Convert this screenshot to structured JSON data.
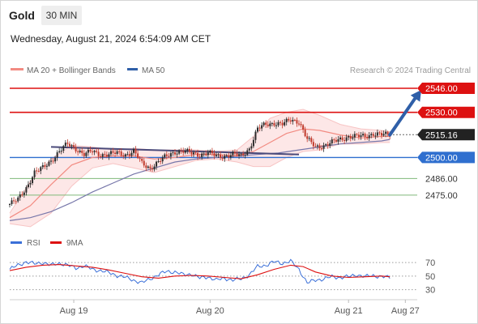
{
  "header": {
    "instrument": "Gold",
    "timeframe": "30 MIN",
    "timestamp": "Wednesday, August 21, 2024 6:54:09 AM CET"
  },
  "legend": {
    "ma20_label": "MA 20 + Bollinger Bands",
    "ma50_label": "MA 50",
    "credit": "Research © 2024 Trading Central",
    "rsi_label": "RSI",
    "ma9_label": "9MA"
  },
  "colors": {
    "resistance": "#dd1111",
    "support": "#2f6fcf",
    "support_minor": "#7fb87a",
    "price_box": "#222222",
    "arrow": "#2f5fa8",
    "candle_up": "#2b2b2b",
    "candle_down": "#c0392b",
    "ma20": "#f28b82",
    "ma50": "#7777aa",
    "bands_fill": "#fde3e3",
    "trendline": "#4a4a7a",
    "rsi": "#3a6fd8",
    "rsi_ma": "#dd1111"
  },
  "chart_data": [
    {
      "type": "candlestick",
      "title": "Gold",
      "timeframe": "30 MIN",
      "x_ticks": [
        "Aug 19",
        "Aug 20",
        "Aug 21",
        "Aug 27"
      ],
      "ylim": [
        2455,
        2553
      ],
      "last_price": 2515.16,
      "levels": [
        {
          "label": "2546.00",
          "value": 2546.0,
          "kind": "resistance"
        },
        {
          "label": "2530.00",
          "value": 2530.0,
          "kind": "resistance"
        },
        {
          "label": "2515.16",
          "value": 2515.16,
          "kind": "price"
        },
        {
          "label": "2500.00",
          "value": 2500.0,
          "kind": "support"
        },
        {
          "label": "2486.00",
          "value": 2486.0,
          "kind": "support-minor"
        },
        {
          "label": "2475.00",
          "value": 2475.0,
          "kind": "support-minor"
        }
      ],
      "close_path": [
        [
          0,
          2469
        ],
        [
          4,
          2472
        ],
        [
          8,
          2480
        ],
        [
          12,
          2490
        ],
        [
          16,
          2493
        ],
        [
          20,
          2498
        ],
        [
          24,
          2504
        ],
        [
          28,
          2509
        ],
        [
          32,
          2506
        ],
        [
          36,
          2502
        ],
        [
          40,
          2504
        ],
        [
          44,
          2502
        ],
        [
          48,
          2502
        ],
        [
          52,
          2503
        ],
        [
          56,
          2502
        ],
        [
          60,
          2504
        ],
        [
          64,
          2496
        ],
        [
          68,
          2493
        ],
        [
          72,
          2497
        ],
        [
          76,
          2501
        ],
        [
          80,
          2504
        ],
        [
          84,
          2504
        ],
        [
          88,
          2503
        ],
        [
          92,
          2502
        ],
        [
          96,
          2503
        ],
        [
          100,
          2501
        ],
        [
          104,
          2501
        ],
        [
          108,
          2502
        ],
        [
          112,
          2501
        ],
        [
          116,
          2506
        ],
        [
          120,
          2519
        ],
        [
          124,
          2522
        ],
        [
          128,
          2523
        ],
        [
          132,
          2522
        ],
        [
          136,
          2525
        ],
        [
          140,
          2524
        ],
        [
          144,
          2512
        ],
        [
          148,
          2507
        ],
        [
          152,
          2508
        ],
        [
          156,
          2510
        ],
        [
          160,
          2512
        ],
        [
          164,
          2514
        ],
        [
          168,
          2514
        ],
        [
          172,
          2514
        ],
        [
          176,
          2516
        ],
        [
          180,
          2515
        ],
        [
          184,
          2515.16
        ]
      ],
      "ma20": [
        [
          0,
          2460
        ],
        [
          10,
          2468
        ],
        [
          20,
          2482
        ],
        [
          30,
          2495
        ],
        [
          40,
          2500
        ],
        [
          50,
          2501
        ],
        [
          60,
          2501
        ],
        [
          70,
          2499
        ],
        [
          80,
          2500
        ],
        [
          90,
          2502
        ],
        [
          100,
          2502
        ],
        [
          110,
          2501
        ],
        [
          118,
          2504
        ],
        [
          126,
          2510
        ],
        [
          134,
          2516
        ],
        [
          142,
          2519
        ],
        [
          150,
          2518
        ],
        [
          160,
          2515
        ],
        [
          170,
          2513
        ],
        [
          180,
          2514
        ],
        [
          184,
          2514
        ]
      ],
      "bb_upper": [
        [
          0,
          2463
        ],
        [
          10,
          2484
        ],
        [
          20,
          2499
        ],
        [
          30,
          2508
        ],
        [
          40,
          2507
        ],
        [
          50,
          2505
        ],
        [
          60,
          2506
        ],
        [
          70,
          2505
        ],
        [
          80,
          2505
        ],
        [
          90,
          2505
        ],
        [
          100,
          2504
        ],
        [
          110,
          2505
        ],
        [
          118,
          2514
        ],
        [
          126,
          2526
        ],
        [
          134,
          2530
        ],
        [
          142,
          2532
        ],
        [
          150,
          2528
        ],
        [
          160,
          2522
        ],
        [
          170,
          2519
        ],
        [
          180,
          2518
        ],
        [
          184,
          2517
        ]
      ],
      "bb_lower": [
        [
          0,
          2456
        ],
        [
          10,
          2454
        ],
        [
          20,
          2463
        ],
        [
          30,
          2481
        ],
        [
          40,
          2493
        ],
        [
          50,
          2496
        ],
        [
          60,
          2493
        ],
        [
          70,
          2490
        ],
        [
          80,
          2494
        ],
        [
          90,
          2498
        ],
        [
          100,
          2499
        ],
        [
          110,
          2497
        ],
        [
          118,
          2494
        ],
        [
          126,
          2494
        ],
        [
          134,
          2500
        ],
        [
          142,
          2504
        ],
        [
          150,
          2505
        ],
        [
          160,
          2509
        ],
        [
          170,
          2509
        ],
        [
          180,
          2510
        ],
        [
          184,
          2510
        ]
      ],
      "ma50": [
        [
          0,
          2458
        ],
        [
          10,
          2460
        ],
        [
          20,
          2464
        ],
        [
          30,
          2470
        ],
        [
          40,
          2477
        ],
        [
          50,
          2483
        ],
        [
          60,
          2489
        ],
        [
          70,
          2493
        ],
        [
          80,
          2497
        ],
        [
          90,
          2499
        ],
        [
          100,
          2500
        ],
        [
          110,
          2501
        ],
        [
          120,
          2502
        ],
        [
          130,
          2503
        ],
        [
          140,
          2505
        ],
        [
          150,
          2507
        ],
        [
          160,
          2509
        ],
        [
          170,
          2510
        ],
        [
          180,
          2511
        ],
        [
          184,
          2512
        ]
      ],
      "trendline": [
        [
          20,
          2507
        ],
        [
          140,
          2502
        ]
      ],
      "forecast_arrow": [
        [
          184,
          2515
        ],
        [
          200,
          2546
        ]
      ]
    },
    {
      "type": "line",
      "title": "RSI",
      "series": [
        {
          "name": "RSI"
        },
        {
          "name": "9MA"
        }
      ],
      "yticks": [
        70,
        50,
        30
      ],
      "ylim": [
        20,
        82
      ],
      "rsi": [
        [
          0,
          60
        ],
        [
          4,
          66
        ],
        [
          8,
          71
        ],
        [
          12,
          68
        ],
        [
          16,
          70
        ],
        [
          20,
          66
        ],
        [
          24,
          69
        ],
        [
          28,
          66
        ],
        [
          32,
          62
        ],
        [
          36,
          65
        ],
        [
          40,
          60
        ],
        [
          44,
          58
        ],
        [
          48,
          55
        ],
        [
          52,
          51
        ],
        [
          56,
          48
        ],
        [
          60,
          44
        ],
        [
          64,
          40
        ],
        [
          68,
          46
        ],
        [
          72,
          52
        ],
        [
          76,
          57
        ],
        [
          80,
          56
        ],
        [
          84,
          52
        ],
        [
          88,
          53
        ],
        [
          92,
          47
        ],
        [
          96,
          49
        ],
        [
          100,
          44
        ],
        [
          104,
          47
        ],
        [
          108,
          44
        ],
        [
          112,
          46
        ],
        [
          116,
          52
        ],
        [
          120,
          64
        ],
        [
          124,
          66
        ],
        [
          128,
          71
        ],
        [
          132,
          69
        ],
        [
          136,
          72
        ],
        [
          140,
          60
        ],
        [
          144,
          40
        ],
        [
          148,
          44
        ],
        [
          152,
          46
        ],
        [
          156,
          49
        ],
        [
          160,
          48
        ],
        [
          164,
          49
        ],
        [
          168,
          52
        ],
        [
          172,
          49
        ],
        [
          176,
          51
        ],
        [
          180,
          49
        ],
        [
          184,
          48
        ]
      ],
      "rsi_ma": [
        [
          0,
          58
        ],
        [
          8,
          63
        ],
        [
          16,
          66
        ],
        [
          24,
          67
        ],
        [
          32,
          65
        ],
        [
          40,
          63
        ],
        [
          48,
          59
        ],
        [
          56,
          54
        ],
        [
          64,
          49
        ],
        [
          72,
          47
        ],
        [
          80,
          50
        ],
        [
          88,
          51
        ],
        [
          96,
          50
        ],
        [
          104,
          48
        ],
        [
          112,
          46
        ],
        [
          120,
          52
        ],
        [
          128,
          60
        ],
        [
          136,
          66
        ],
        [
          142,
          64
        ],
        [
          148,
          56
        ],
        [
          156,
          50
        ],
        [
          164,
          48
        ],
        [
          172,
          49
        ],
        [
          180,
          50
        ],
        [
          184,
          49
        ]
      ]
    }
  ]
}
